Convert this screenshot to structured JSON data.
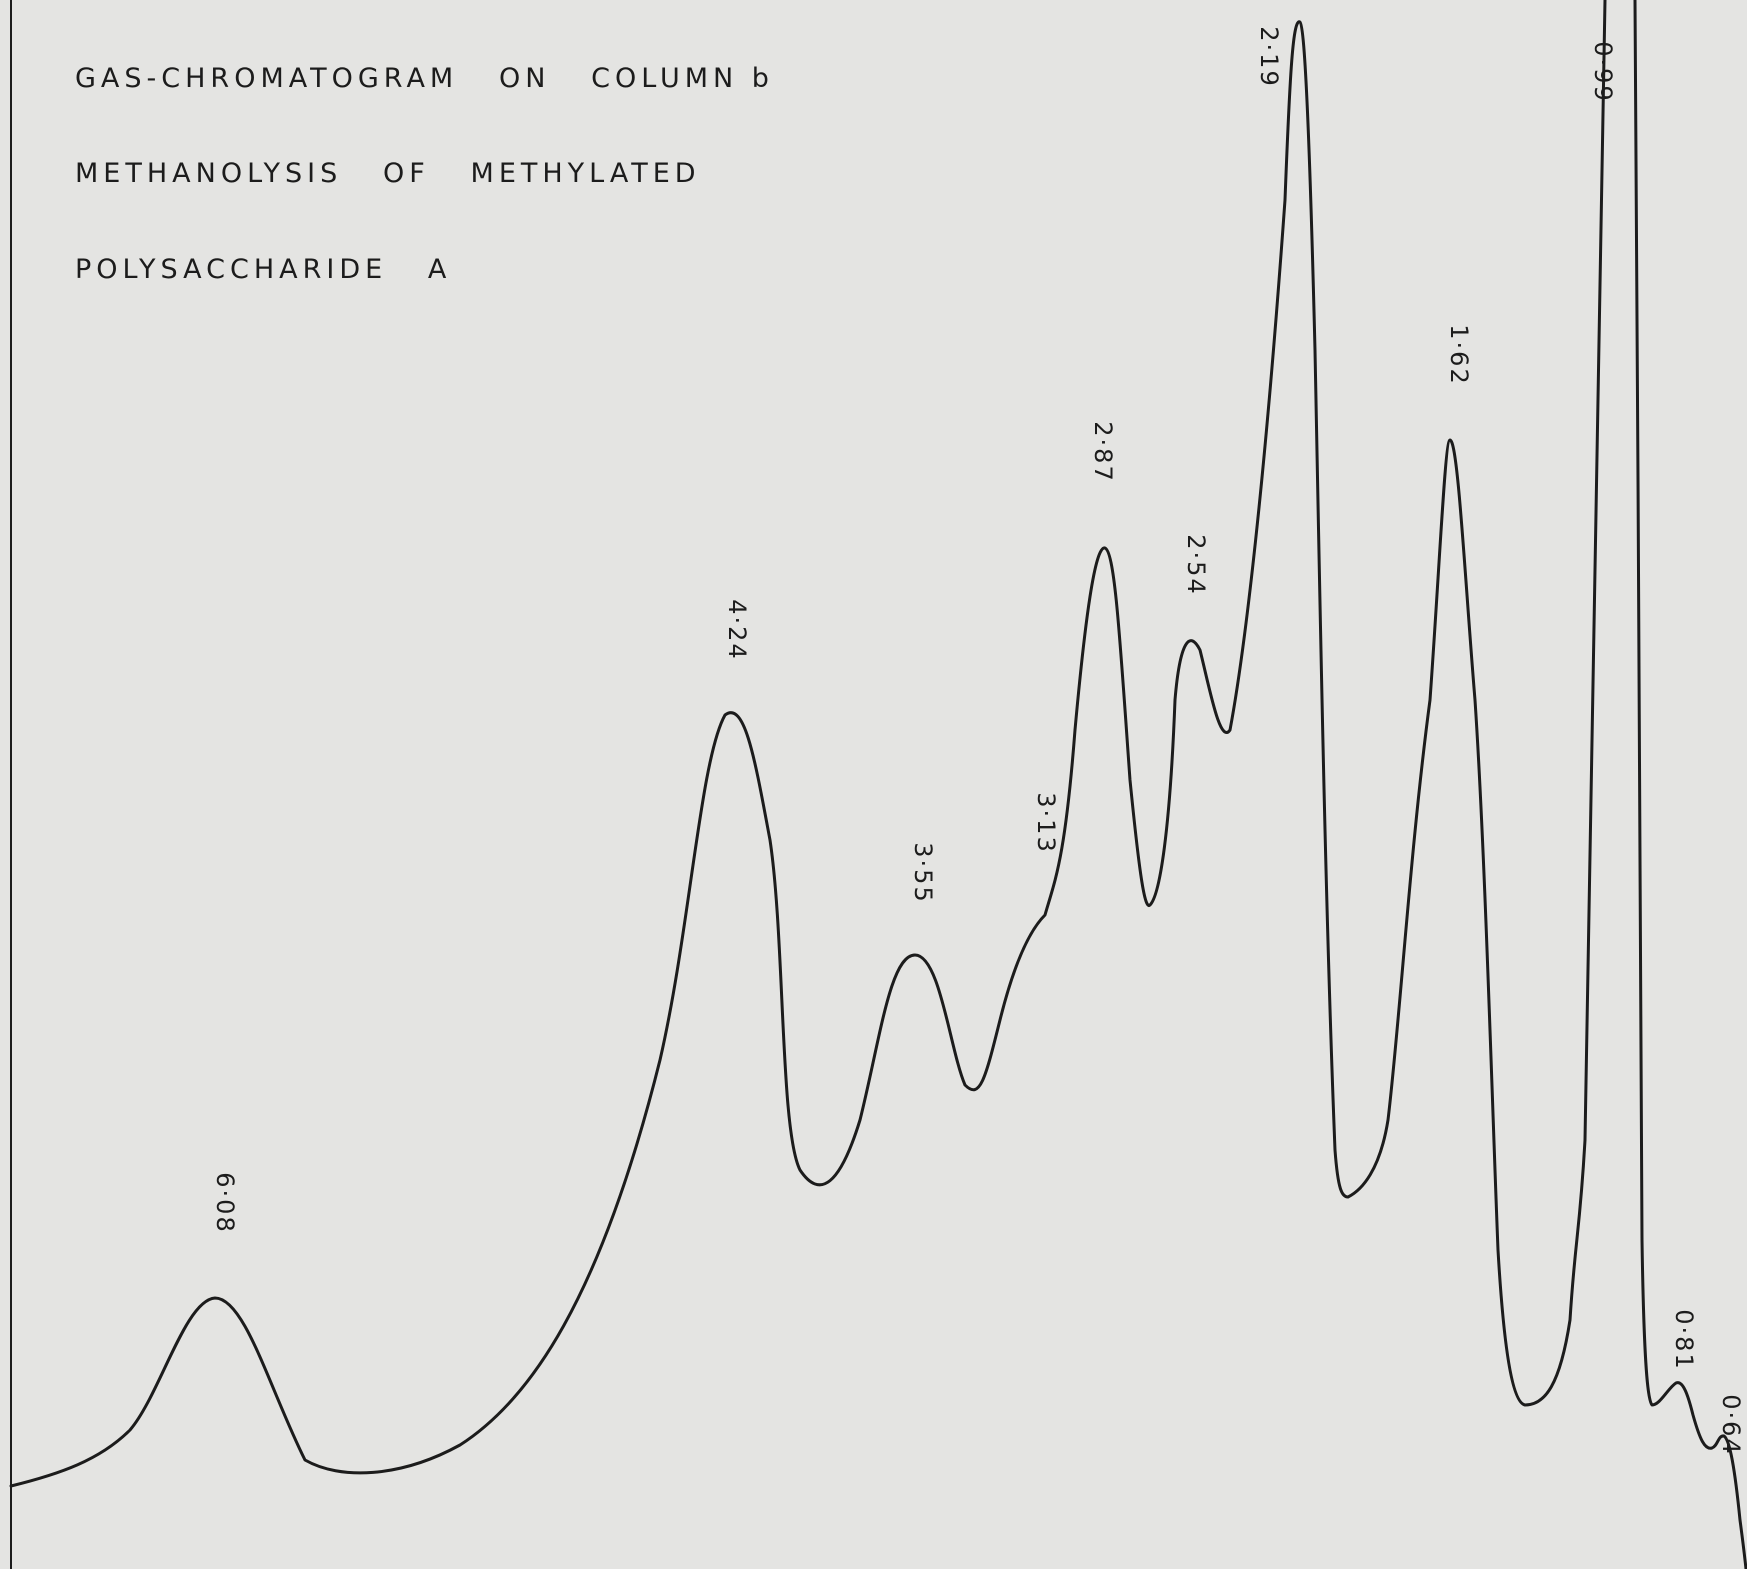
{
  "chart_data": {
    "type": "line",
    "title_lines": [
      "GAS-CHROMATOGRAM   ON   COLUMN b",
      "METHANOLYSIS   OF   METHYLATED",
      "POLYSACCHARIDE   A"
    ],
    "xlabel": "",
    "ylabel": "",
    "grid": false,
    "x_direction": "decreasing to the right",
    "peaks": [
      {
        "label": "6·08",
        "x": 6.08,
        "y": 0.27
      },
      {
        "label": "4·24",
        "x": 4.24,
        "y": 0.64
      },
      {
        "label": "3·55",
        "x": 3.55,
        "y": 0.41
      },
      {
        "label": "3·13",
        "x": 3.13,
        "y": 0.48
      },
      {
        "label": "2·87",
        "x": 2.87,
        "y": 0.8
      },
      {
        "label": "2·54",
        "x": 2.54,
        "y": 0.72
      },
      {
        "label": "2·19",
        "x": 2.19,
        "y": 1.0
      },
      {
        "label": "1·62",
        "x": 1.62,
        "y": 0.88
      },
      {
        "label": "0·99",
        "x": 0.99,
        "y": 1.0
      },
      {
        "label": "0·81",
        "x": 0.81,
        "y": 0.09
      },
      {
        "label": "0·64",
        "x": 0.64,
        "y": 0.06
      }
    ]
  },
  "colors": {
    "background": "#e4e4e2",
    "ink": "#1c1c1c"
  }
}
